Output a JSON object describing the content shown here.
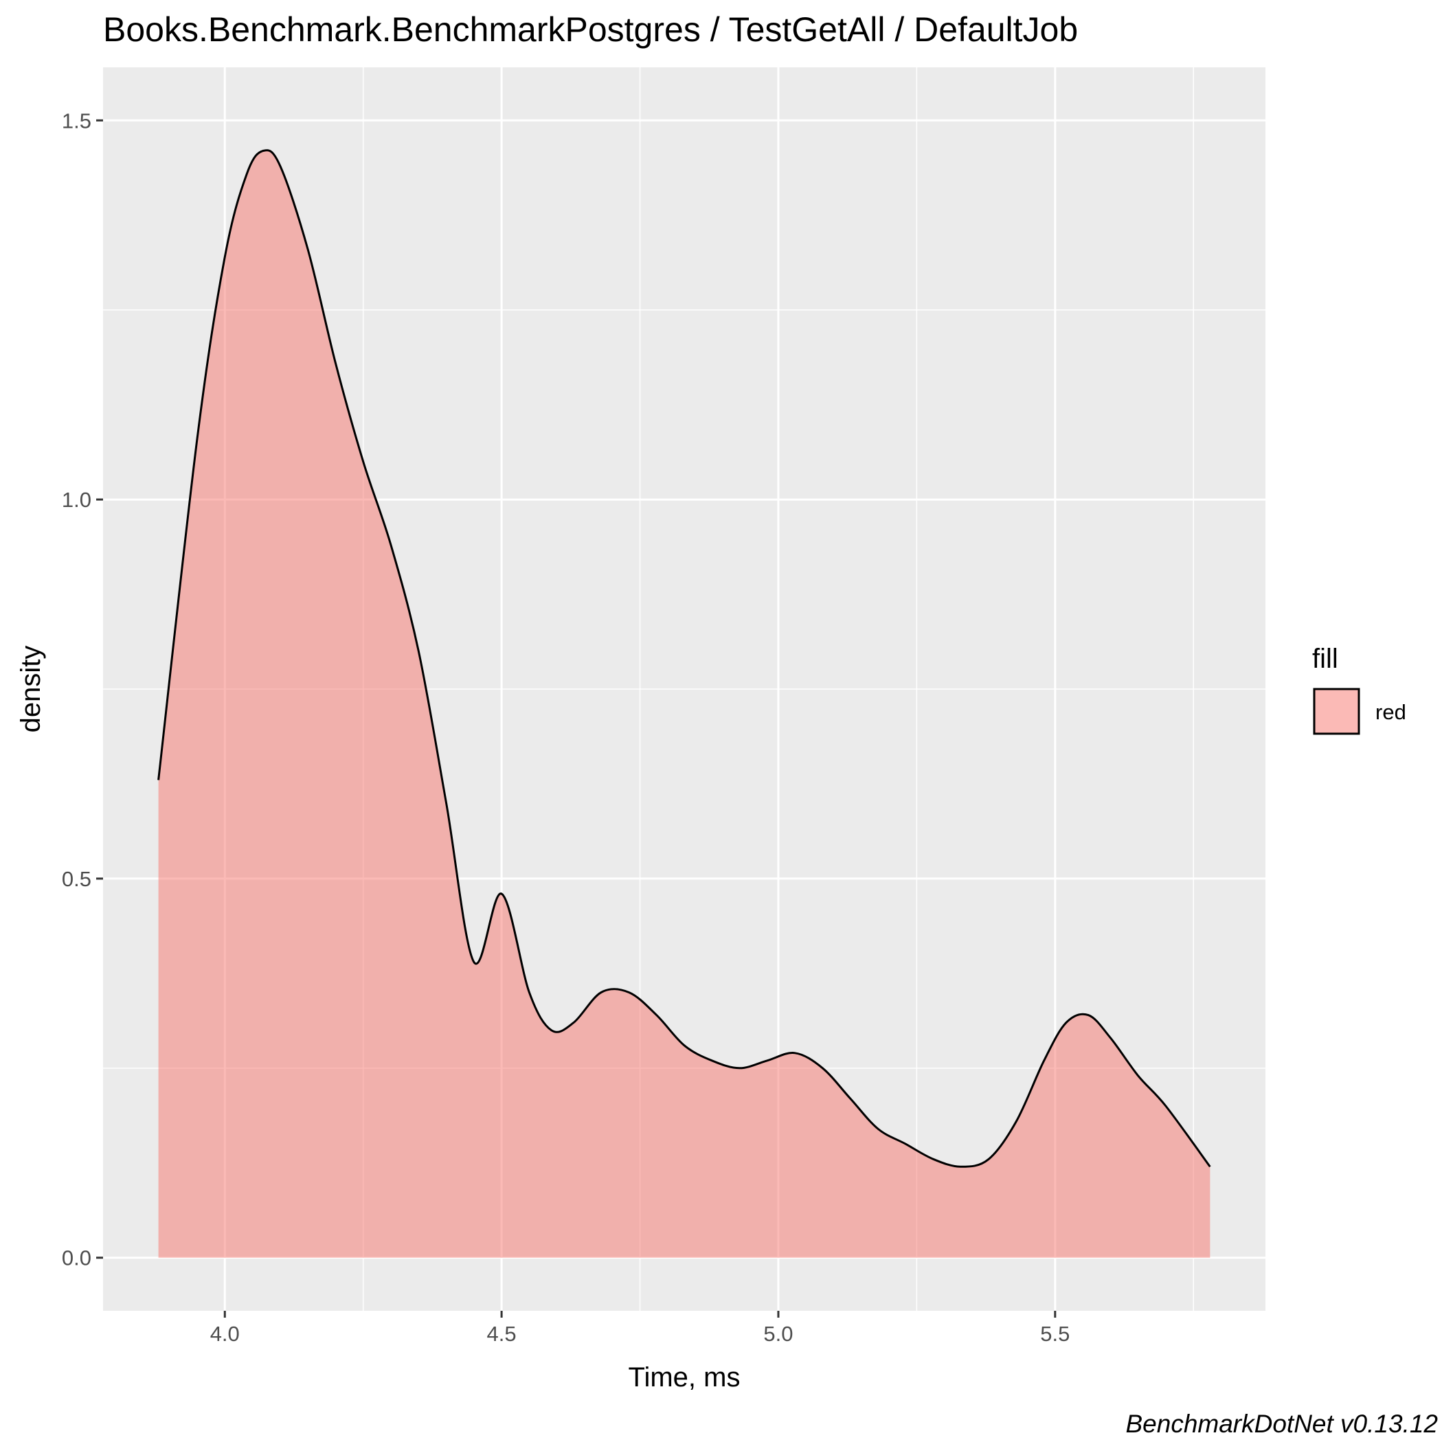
{
  "chart_data": {
    "type": "area",
    "title": "Books.Benchmark.BenchmarkPostgres / TestGetAll / DefaultJob",
    "xlabel": "Time, ms",
    "ylabel": "density",
    "xlim": [
      3.78,
      5.88
    ],
    "ylim": [
      -0.07,
      1.57
    ],
    "x_ticks": [
      4.0,
      4.5,
      5.0,
      5.5
    ],
    "x_tick_labels": [
      "4.0",
      "4.5",
      "5.0",
      "5.5"
    ],
    "y_ticks": [
      0.0,
      0.5,
      1.0,
      1.5
    ],
    "y_tick_labels": [
      "0.0",
      "0.5",
      "1.0",
      "1.5"
    ],
    "grid": true,
    "legend": {
      "title": "fill",
      "position": "right",
      "entries": [
        "red"
      ]
    },
    "caption": "BenchmarkDotNet v0.13.12",
    "colors": {
      "panel": "#ebebeb",
      "grid": "#ffffff",
      "fill": "#f8766d",
      "fill_opacity": 0.5,
      "outline": "#000000"
    },
    "series": [
      {
        "name": "red",
        "x": [
          3.88,
          3.95,
          4.0,
          4.04,
          4.07,
          4.1,
          4.15,
          4.2,
          4.25,
          4.3,
          4.35,
          4.4,
          4.45,
          4.5,
          4.55,
          4.59,
          4.63,
          4.68,
          4.73,
          4.78,
          4.83,
          4.88,
          4.93,
          4.98,
          5.03,
          5.08,
          5.13,
          5.18,
          5.23,
          5.28,
          5.33,
          5.38,
          5.43,
          5.48,
          5.52,
          5.56,
          5.6,
          5.65,
          5.7,
          5.78
        ],
        "y": [
          0.63,
          1.08,
          1.32,
          1.43,
          1.46,
          1.44,
          1.33,
          1.18,
          1.05,
          0.94,
          0.8,
          0.6,
          0.39,
          0.48,
          0.35,
          0.3,
          0.31,
          0.35,
          0.35,
          0.32,
          0.28,
          0.26,
          0.25,
          0.26,
          0.27,
          0.25,
          0.21,
          0.17,
          0.15,
          0.13,
          0.12,
          0.13,
          0.18,
          0.26,
          0.31,
          0.32,
          0.29,
          0.24,
          0.2,
          0.12
        ]
      }
    ]
  }
}
